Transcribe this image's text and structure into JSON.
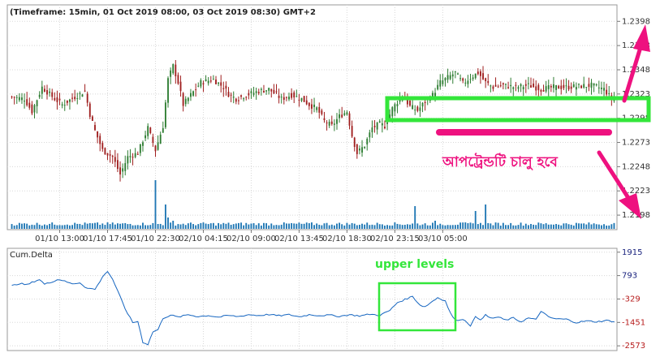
{
  "chart_data": [
    {
      "type": "candlestick",
      "title": "(Timeframe: 15min, 01 Oct 2019 08:00, 03 Oct 2019 08:30) GMT+2",
      "ylim": [
        1.2183,
        1.2415
      ],
      "yticks": [
        "1.2398",
        "1.2373",
        "1.2348",
        "1.2323",
        "1.2298",
        "1.2273",
        "1.2248",
        "1.2223",
        "1.2198"
      ],
      "ytick_values": [
        1.2398,
        1.2373,
        1.2348,
        1.2323,
        1.2298,
        1.2273,
        1.2248,
        1.2223,
        1.2198
      ],
      "xticks": [
        "01/10 13:00",
        "01/10 17:45",
        "01/10 22:30",
        "02/10 04:15",
        "02/10 09:00",
        "02/10 13:45",
        "02/10 18:30",
        "02/10 23:15",
        "03/10 05:00"
      ],
      "grid": true,
      "colors": {
        "up": "#2e7d32",
        "down": "#a01f1f",
        "volume": "#1f77b4"
      },
      "anchors": [
        [
          0,
          1.232
        ],
        [
          5,
          1.2318
        ],
        [
          8,
          1.2305
        ],
        [
          12,
          1.233
        ],
        [
          17,
          1.2318
        ],
        [
          20,
          1.2312
        ],
        [
          25,
          1.232
        ],
        [
          29,
          1.2326
        ],
        [
          31,
          1.2302
        ],
        [
          33,
          1.2285
        ],
        [
          36,
          1.2265
        ],
        [
          40,
          1.2258
        ],
        [
          43,
          1.224
        ],
        [
          46,
          1.2258
        ],
        [
          50,
          1.2262
        ],
        [
          52,
          1.2275
        ],
        [
          54,
          1.2288
        ],
        [
          57,
          1.2265
        ],
        [
          60,
          1.229
        ],
        [
          62,
          1.2338
        ],
        [
          64,
          1.2352
        ],
        [
          66,
          1.2335
        ],
        [
          68,
          1.2312
        ],
        [
          71,
          1.2322
        ],
        [
          75,
          1.2335
        ],
        [
          80,
          1.2338
        ],
        [
          84,
          1.233
        ],
        [
          86,
          1.2323
        ],
        [
          89,
          1.2318
        ],
        [
          93,
          1.2322
        ],
        [
          98,
          1.2326
        ],
        [
          102,
          1.2328
        ],
        [
          107,
          1.2318
        ],
        [
          111,
          1.2322
        ],
        [
          115,
          1.2318
        ],
        [
          118,
          1.2312
        ],
        [
          121,
          1.2308
        ],
        [
          124,
          1.2295
        ],
        [
          127,
          1.229
        ],
        [
          130,
          1.23
        ],
        [
          133,
          1.2305
        ],
        [
          135,
          1.228
        ],
        [
          137,
          1.2262
        ],
        [
          140,
          1.227
        ],
        [
          143,
          1.2288
        ],
        [
          146,
          1.2292
        ],
        [
          148,
          1.229
        ],
        [
          151,
          1.2308
        ],
        [
          155,
          1.2322
        ],
        [
          158,
          1.231
        ],
        [
          161,
          1.2306
        ],
        [
          164,
          1.2315
        ],
        [
          167,
          1.2322
        ],
        [
          170,
          1.2335
        ],
        [
          173,
          1.234
        ],
        [
          176,
          1.2345
        ],
        [
          179,
          1.2334
        ],
        [
          182,
          1.234
        ],
        [
          185,
          1.2345
        ],
        [
          188,
          1.2335
        ],
        [
          191,
          1.233
        ],
        [
          195,
          1.2332
        ],
        [
          200,
          1.233
        ],
        [
          205,
          1.2332
        ],
        [
          210,
          1.2328
        ],
        [
          215,
          1.233
        ],
        [
          220,
          1.233
        ],
        [
          225,
          1.2331
        ],
        [
          230,
          1.2332
        ],
        [
          235,
          1.2328
        ],
        [
          238,
          1.2318
        ]
      ],
      "volume_base": 4,
      "volume_spikes": [
        [
          57,
          60
        ],
        [
          61,
          30
        ],
        [
          62,
          14
        ],
        [
          64,
          10
        ],
        [
          160,
          28
        ],
        [
          168,
          10
        ],
        [
          184,
          22
        ],
        [
          188,
          30
        ]
      ]
    },
    {
      "type": "line",
      "label": "Cum.Delta",
      "ylim": [
        -2800,
        2100
      ],
      "yticks": [
        "1915",
        "793",
        "-329",
        "-1451",
        "-2573"
      ],
      "ytick_values": [
        1915,
        793,
        -329,
        -1451,
        -2573
      ],
      "ytick_colors": [
        "#1a237e",
        "#1a237e",
        "#b71c1c",
        "#b71c1c",
        "#b71c1c"
      ],
      "color": "#1565c0",
      "anchors": [
        [
          0,
          300
        ],
        [
          3,
          420
        ],
        [
          6,
          350
        ],
        [
          9,
          520
        ],
        [
          11,
          610
        ],
        [
          13,
          380
        ],
        [
          15,
          450
        ],
        [
          18,
          600
        ],
        [
          21,
          560
        ],
        [
          23,
          420
        ],
        [
          25,
          390
        ],
        [
          27,
          460
        ],
        [
          29,
          250
        ],
        [
          31,
          180
        ],
        [
          33,
          130
        ],
        [
          35,
          520
        ],
        [
          37,
          900
        ],
        [
          38,
          1000
        ],
        [
          40,
          620
        ],
        [
          42,
          60
        ],
        [
          45,
          -800
        ],
        [
          48,
          -1460
        ],
        [
          50,
          -1400
        ],
        [
          52,
          -2400
        ],
        [
          54,
          -2500
        ],
        [
          56,
          -1900
        ],
        [
          58,
          -1800
        ],
        [
          60,
          -1250
        ],
        [
          63,
          -1100
        ],
        [
          66,
          -1200
        ],
        [
          70,
          -1080
        ],
        [
          74,
          -1170
        ],
        [
          78,
          -1120
        ],
        [
          82,
          -1200
        ],
        [
          86,
          -1120
        ],
        [
          90,
          -1170
        ],
        [
          94,
          -1080
        ],
        [
          98,
          -1120
        ],
        [
          102,
          -1070
        ],
        [
          106,
          -1130
        ],
        [
          110,
          -1080
        ],
        [
          114,
          -1180
        ],
        [
          118,
          -1080
        ],
        [
          122,
          -1120
        ],
        [
          126,
          -1100
        ],
        [
          130,
          -1160
        ],
        [
          134,
          -1080
        ],
        [
          138,
          -1140
        ],
        [
          142,
          -1060
        ],
        [
          146,
          -1110
        ],
        [
          150,
          -880
        ],
        [
          153,
          -500
        ],
        [
          156,
          -350
        ],
        [
          159,
          -200
        ],
        [
          162,
          -620
        ],
        [
          164,
          -700
        ],
        [
          166,
          -520
        ],
        [
          169,
          -260
        ],
        [
          172,
          -420
        ],
        [
          174,
          -1000
        ],
        [
          176,
          -1360
        ],
        [
          178,
          -1300
        ],
        [
          180,
          -1360
        ],
        [
          182,
          -1600
        ],
        [
          184,
          -1200
        ],
        [
          186,
          -1300
        ],
        [
          188,
          -1100
        ],
        [
          190,
          -1250
        ],
        [
          193,
          -1200
        ],
        [
          196,
          -1340
        ],
        [
          199,
          -1240
        ],
        [
          202,
          -1420
        ],
        [
          205,
          -1240
        ],
        [
          208,
          -1320
        ],
        [
          210,
          -900
        ],
        [
          213,
          -1200
        ],
        [
          216,
          -1280
        ],
        [
          220,
          -1300
        ],
        [
          224,
          -1460
        ],
        [
          228,
          -1380
        ],
        [
          232,
          -1420
        ],
        [
          236,
          -1360
        ],
        [
          240,
          -1420
        ]
      ]
    }
  ],
  "annotations": {
    "upper_levels": "upper levels",
    "bengali_note": "আপট্রেন্ডটি চালু হবে"
  }
}
